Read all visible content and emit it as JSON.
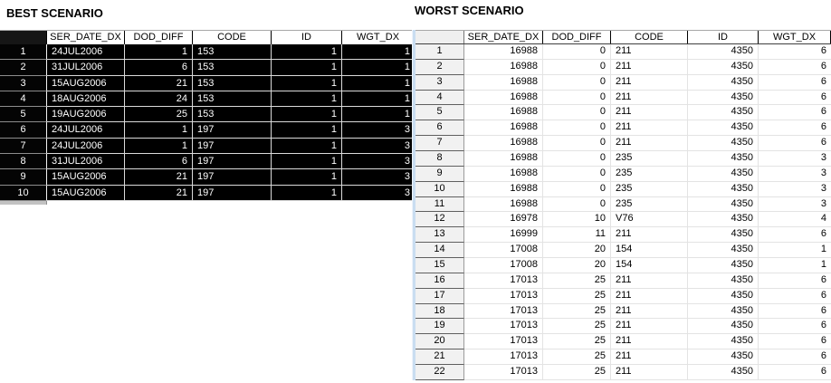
{
  "best": {
    "title": "BEST SCENARIO",
    "columns": [
      "SER_DATE_DX",
      "DOD_DIFF",
      "CODE",
      "ID",
      "WGT_DX"
    ],
    "rows": [
      {
        "n": "1",
        "cells": [
          "24JUL2006",
          "1",
          "153",
          "1",
          "1"
        ]
      },
      {
        "n": "2",
        "cells": [
          "31JUL2006",
          "6",
          "153",
          "1",
          "1"
        ]
      },
      {
        "n": "3",
        "cells": [
          "15AUG2006",
          "21",
          "153",
          "1",
          "1"
        ]
      },
      {
        "n": "4",
        "cells": [
          "18AUG2006",
          "24",
          "153",
          "1",
          "1"
        ]
      },
      {
        "n": "5",
        "cells": [
          "19AUG2006",
          "25",
          "153",
          "1",
          "1"
        ]
      },
      {
        "n": "6",
        "cells": [
          "24JUL2006",
          "1",
          "197",
          "1",
          "3"
        ]
      },
      {
        "n": "7",
        "cells": [
          "24JUL2006",
          "1",
          "197",
          "1",
          "3"
        ]
      },
      {
        "n": "8",
        "cells": [
          "31JUL2006",
          "6",
          "197",
          "1",
          "3"
        ]
      },
      {
        "n": "9",
        "cells": [
          "15AUG2006",
          "21",
          "197",
          "1",
          "3"
        ]
      },
      {
        "n": "10",
        "cells": [
          "15AUG2006",
          "21",
          "197",
          "1",
          "3"
        ]
      }
    ]
  },
  "worst": {
    "title": "WORST SCENARIO",
    "columns": [
      "SER_DATE_DX",
      "DOD_DIFF",
      "CODE",
      "ID",
      "WGT_DX"
    ],
    "rows": [
      {
        "n": "1",
        "cells": [
          "16988",
          "0",
          "211",
          "4350",
          "6"
        ]
      },
      {
        "n": "2",
        "cells": [
          "16988",
          "0",
          "211",
          "4350",
          "6"
        ]
      },
      {
        "n": "3",
        "cells": [
          "16988",
          "0",
          "211",
          "4350",
          "6"
        ]
      },
      {
        "n": "4",
        "cells": [
          "16988",
          "0",
          "211",
          "4350",
          "6"
        ]
      },
      {
        "n": "5",
        "cells": [
          "16988",
          "0",
          "211",
          "4350",
          "6"
        ]
      },
      {
        "n": "6",
        "cells": [
          "16988",
          "0",
          "211",
          "4350",
          "6"
        ]
      },
      {
        "n": "7",
        "cells": [
          "16988",
          "0",
          "211",
          "4350",
          "6"
        ]
      },
      {
        "n": "8",
        "cells": [
          "16988",
          "0",
          "235",
          "4350",
          "3"
        ]
      },
      {
        "n": "9",
        "cells": [
          "16988",
          "0",
          "235",
          "4350",
          "3"
        ]
      },
      {
        "n": "10",
        "cells": [
          "16988",
          "0",
          "235",
          "4350",
          "3"
        ]
      },
      {
        "n": "11",
        "cells": [
          "16988",
          "0",
          "235",
          "4350",
          "3"
        ]
      },
      {
        "n": "12",
        "cells": [
          "16978",
          "10",
          "V76",
          "4350",
          "4"
        ]
      },
      {
        "n": "13",
        "cells": [
          "16999",
          "11",
          "211",
          "4350",
          "6"
        ]
      },
      {
        "n": "14",
        "cells": [
          "17008",
          "20",
          "154",
          "4350",
          "1"
        ]
      },
      {
        "n": "15",
        "cells": [
          "17008",
          "20",
          "154",
          "4350",
          "1"
        ]
      },
      {
        "n": "16",
        "cells": [
          "17013",
          "25",
          "211",
          "4350",
          "6"
        ]
      },
      {
        "n": "17",
        "cells": [
          "17013",
          "25",
          "211",
          "4350",
          "6"
        ]
      },
      {
        "n": "18",
        "cells": [
          "17013",
          "25",
          "211",
          "4350",
          "6"
        ]
      },
      {
        "n": "19",
        "cells": [
          "17013",
          "25",
          "211",
          "4350",
          "6"
        ]
      },
      {
        "n": "20",
        "cells": [
          "17013",
          "25",
          "211",
          "4350",
          "6"
        ]
      },
      {
        "n": "21",
        "cells": [
          "17013",
          "25",
          "211",
          "4350",
          "6"
        ]
      },
      {
        "n": "22",
        "cells": [
          "17013",
          "25",
          "211",
          "4350",
          "6"
        ]
      }
    ]
  },
  "colors": {
    "selected_row_bg": "#000000",
    "selected_row_text": "#ffffff",
    "row_header_bg": "#f1f1f1",
    "table_header_bg": "#ffffff",
    "left_accent_strip": "#c9ddf1"
  }
}
